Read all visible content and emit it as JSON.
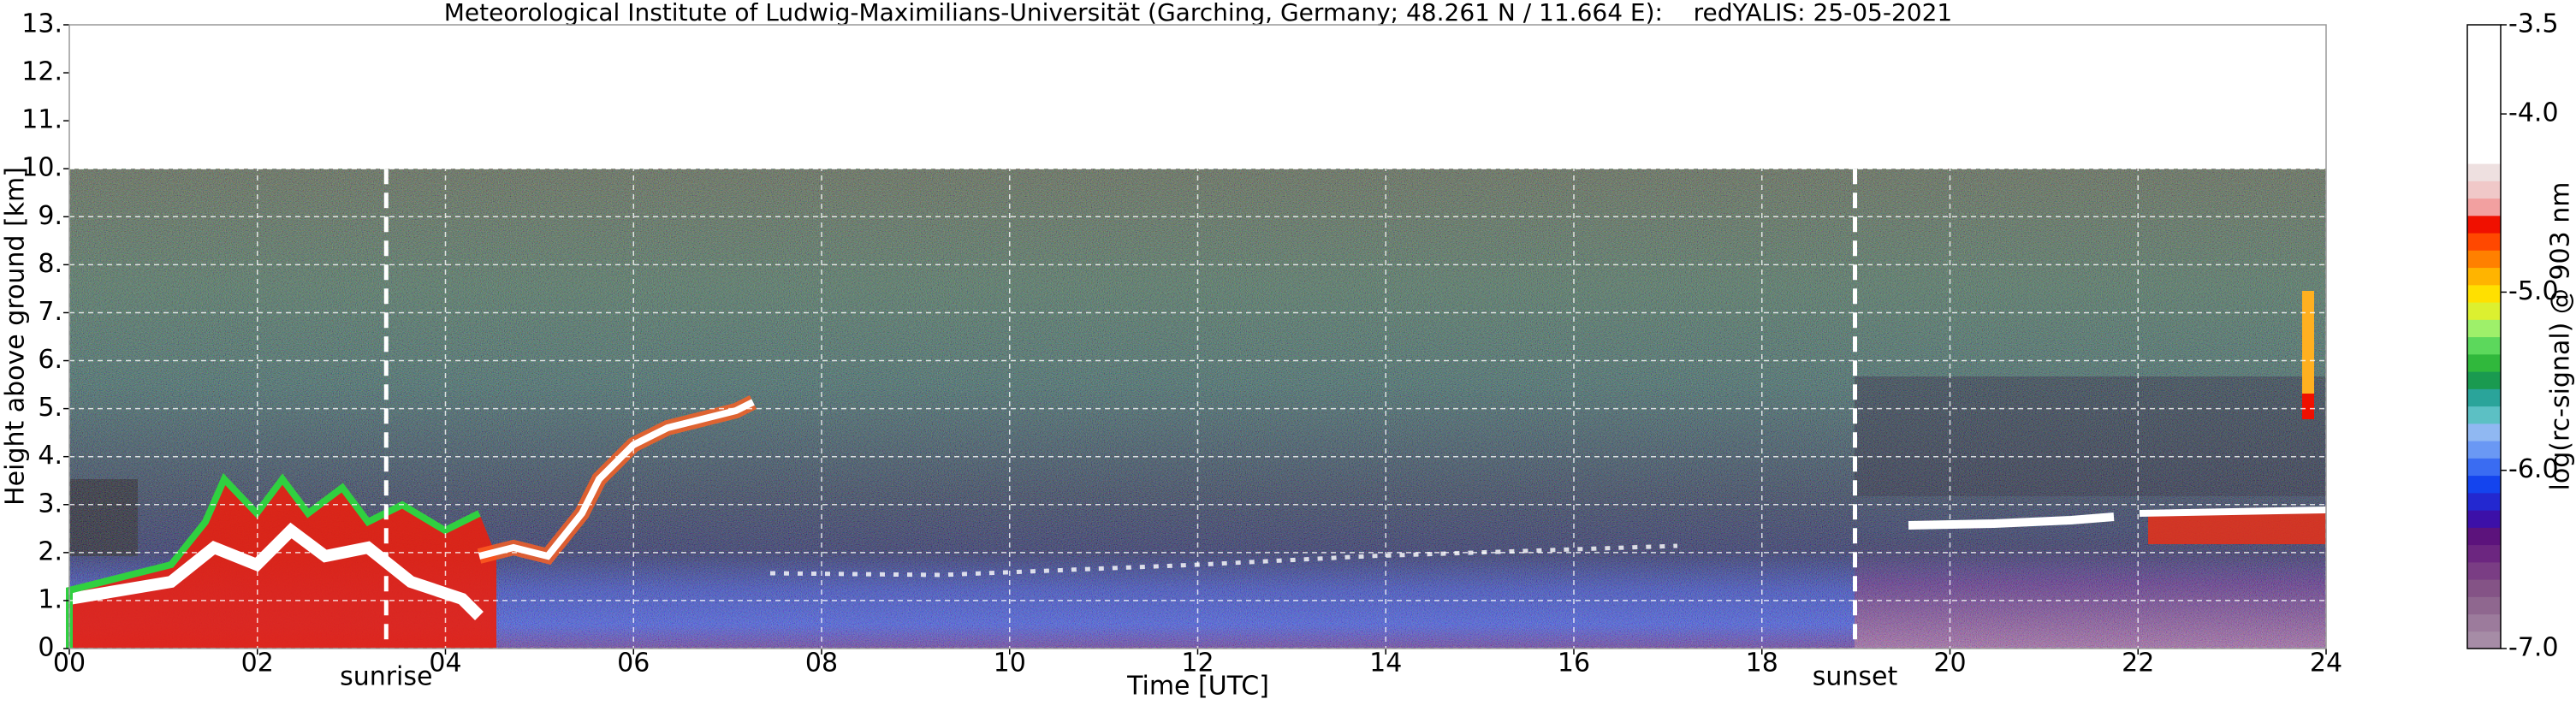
{
  "chart_data": {
    "type": "heatmap",
    "title": "Meteorological Institute of Ludwig-Maximilians-Universität (Garching, Germany; 48.261 N / 11.664 E):    redYALIS: 25-05-2021",
    "xlabel": "Time [UTC]",
    "ylabel": "Height above ground [km]",
    "xlim": [
      0,
      24
    ],
    "ylim": [
      0,
      13
    ],
    "measured_range": [
      0,
      10
    ],
    "xticks": [
      {
        "value": 0,
        "label": "00"
      },
      {
        "value": 2,
        "label": "02"
      },
      {
        "value": 4,
        "label": "04"
      },
      {
        "value": 6,
        "label": "06"
      },
      {
        "value": 8,
        "label": "08"
      },
      {
        "value": 10,
        "label": "10"
      },
      {
        "value": 12,
        "label": "12"
      },
      {
        "value": 14,
        "label": "14"
      },
      {
        "value": 16,
        "label": "16"
      },
      {
        "value": 18,
        "label": "18"
      },
      {
        "value": 20,
        "label": "20"
      },
      {
        "value": 22,
        "label": "22"
      },
      {
        "value": 24,
        "label": "24"
      }
    ],
    "yticks": [
      {
        "value": 0,
        "label": "0."
      },
      {
        "value": 1,
        "label": "1."
      },
      {
        "value": 2,
        "label": "2."
      },
      {
        "value": 3,
        "label": "3."
      },
      {
        "value": 4,
        "label": "4."
      },
      {
        "value": 5,
        "label": "5."
      },
      {
        "value": 6,
        "label": "6."
      },
      {
        "value": 7,
        "label": "7."
      },
      {
        "value": 8,
        "label": "8."
      },
      {
        "value": 9,
        "label": "9."
      },
      {
        "value": 10,
        "label": "10."
      },
      {
        "value": 11,
        "label": "11."
      },
      {
        "value": 12,
        "label": "12."
      },
      {
        "value": 13,
        "label": "13."
      }
    ],
    "grid": true,
    "annotations": [
      {
        "text": "sunrise",
        "x": 3.37
      },
      {
        "text": "sunset",
        "x": 18.99
      }
    ],
    "colorbar": {
      "label": "log(rc-signal) @ 903 nm",
      "clim": [
        -7.0,
        -3.5
      ],
      "ticks": [
        -3.5,
        {
          "value": -4.0,
          "label": "-4.0"
        },
        {
          "value": -5.0,
          "label": "-5.0"
        },
        {
          "value": -6.0,
          "label": "-6.0"
        },
        {
          "value": -7.0,
          "label": "-7.0"
        }
      ],
      "colors": [
        "#a68ca6",
        "#9c7b9c",
        "#8f678f",
        "#845386",
        "#7a3d84",
        "#6c2680",
        "#5c137c",
        "#3c10a8",
        "#2328d0",
        "#1444ee",
        "#3a6cf2",
        "#6a98f4",
        "#90b8f2",
        "#5cc0c4",
        "#2aa49a",
        "#1a9a50",
        "#30b83c",
        "#5cd85c",
        "#9ef06a",
        "#dcf030",
        "#ffe000",
        "#ffb400",
        "#ff8000",
        "#ff4800",
        "#f01000",
        "#f2a0a0",
        "#f0c8c8",
        "#eee0e0",
        "#ffffff",
        "#ffffff",
        "#ffffff",
        "#ffffff",
        "#ffffff",
        "#ffffff",
        "#ffffff",
        "#ffffff"
      ]
    }
  }
}
